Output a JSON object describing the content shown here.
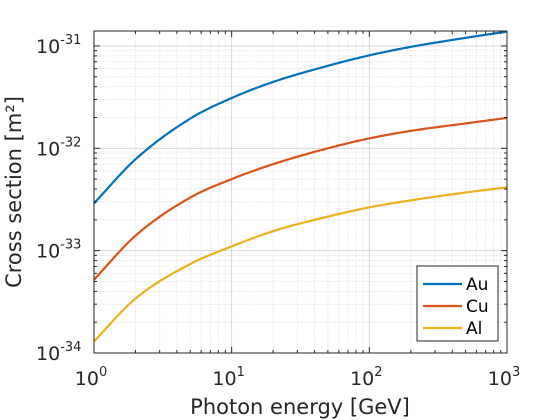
{
  "chart_data": {
    "type": "line",
    "xlabel": "Photon energy [GeV]",
    "ylabel": "Cross section [m²]",
    "xscale": "log",
    "yscale": "log",
    "xlim": [
      1,
      1000
    ],
    "ylim": [
      1e-34,
      1.4e-31
    ],
    "grid": true,
    "minor_grid": true,
    "legend_position": "bottom-right",
    "x_ticks": [
      {
        "base": "10",
        "exp": "0"
      },
      {
        "base": "10",
        "exp": "1"
      },
      {
        "base": "10",
        "exp": "2"
      },
      {
        "base": "10",
        "exp": "3"
      }
    ],
    "y_ticks": [
      {
        "base": "10",
        "exp": "-34"
      },
      {
        "base": "10",
        "exp": "-33"
      },
      {
        "base": "10",
        "exp": "-32"
      },
      {
        "base": "10",
        "exp": "-31"
      }
    ],
    "x": [
      1,
      2,
      5,
      10,
      20,
      50,
      100,
      200,
      500,
      1000
    ],
    "series": [
      {
        "name": "Au",
        "color": "#0072BD",
        "values": [
          2.9e-33,
          7.8e-33,
          1.95e-32,
          3.1e-32,
          4.45e-32,
          6.4e-32,
          8.1e-32,
          9.8e-32,
          1.2e-31,
          1.38e-31
        ]
      },
      {
        "name": "Cu",
        "color": "#D95319",
        "values": [
          5.2e-34,
          1.4e-33,
          3.3e-33,
          5e-33,
          7e-33,
          1e-32,
          1.25e-32,
          1.48e-32,
          1.75e-32,
          1.98e-32
        ]
      },
      {
        "name": "Al",
        "color": "#EDB120",
        "values": [
          1.3e-34,
          3.4e-34,
          7.4e-34,
          1.1e-33,
          1.55e-33,
          2.15e-33,
          2.65e-33,
          3.1e-33,
          3.7e-33,
          4.15e-33
        ]
      }
    ]
  }
}
